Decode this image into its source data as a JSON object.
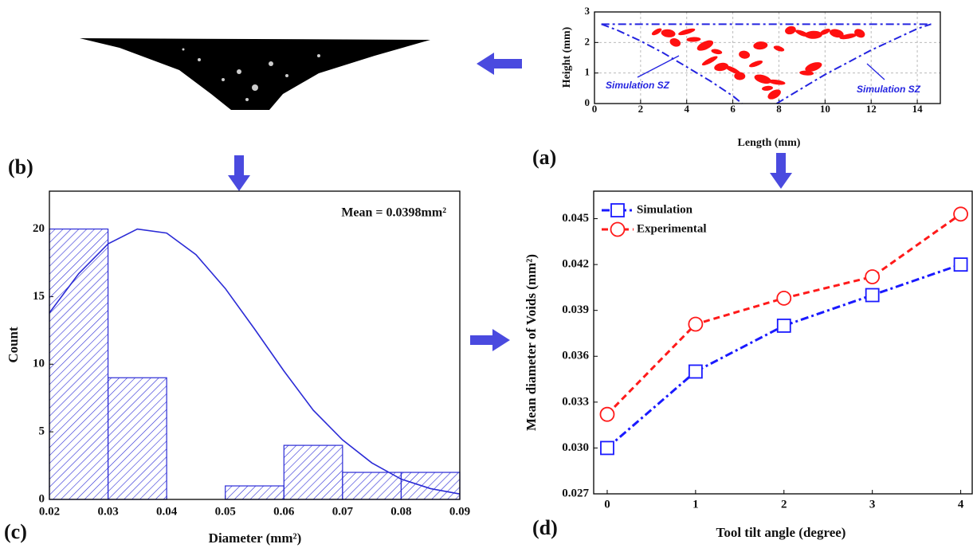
{
  "chart_data": [
    {
      "type": "line",
      "panel_label": "(a)",
      "x_label": "Length (mm)",
      "y_label": "Height (mm)",
      "xlim": [
        0,
        15
      ],
      "xticks": [
        0,
        2,
        4,
        6,
        8,
        10,
        12,
        14
      ],
      "ylim": [
        0,
        3
      ],
      "yticks": [
        0,
        1,
        2,
        3
      ],
      "grid": true,
      "annotations": [
        "Simulation SZ",
        "Simulation SZ"
      ],
      "series": [
        {
          "color": "#2424e0",
          "dash": "dashdot",
          "x": [
            0.3,
            1,
            2,
            3,
            4,
            5,
            6,
            6.4
          ],
          "values": [
            2.6,
            2.4,
            2.05,
            1.65,
            1.2,
            0.75,
            0.25,
            0
          ]
        },
        {
          "color": "#2424e0",
          "dash": "dashdot",
          "x": [
            7.9,
            9,
            10,
            11,
            12,
            13,
            14,
            14.6
          ],
          "values": [
            0,
            0.5,
            0.95,
            1.35,
            1.75,
            2.1,
            2.45,
            2.6
          ]
        },
        {
          "color": "#2424e0",
          "dash": "dashdot",
          "x": [
            0.3,
            14.6
          ],
          "values": [
            2.6,
            2.6
          ]
        },
        {
          "color": "#ff1010",
          "marker": "blob",
          "x": [
            2.7,
            3.2,
            4,
            3.5,
            4.3,
            4.8,
            5.3,
            5.5,
            6,
            6.3,
            7,
            7.3,
            7.5,
            7.8,
            7.9,
            8.5,
            9,
            9.5,
            10,
            10.5,
            11,
            11.5,
            9.2,
            9.5,
            8,
            7.2,
            5,
            6.5
          ],
          "values": [
            2.35,
            2.3,
            2.35,
            2.0,
            2.1,
            1.9,
            1.7,
            1.2,
            1.1,
            0.9,
            1.3,
            0.8,
            0.5,
            0.3,
            0.7,
            2.4,
            2.3,
            2.25,
            2.35,
            2.3,
            2.2,
            2.3,
            1.0,
            1.2,
            1.8,
            1.9,
            1.4,
            1.6
          ]
        }
      ]
    },
    {
      "type": "histogram",
      "panel_label": "(c)",
      "x_label": "Diameter (mm²)",
      "y_label": "Count",
      "annotation": "Mean = 0.0398mm²",
      "color": "#2b2bd6",
      "bins": [
        0.02,
        0.03,
        0.04,
        0.05,
        0.06,
        0.07,
        0.08,
        0.09
      ],
      "counts": [
        20,
        9,
        0,
        1,
        4,
        2,
        2
      ],
      "xlim": [
        0.02,
        0.09
      ],
      "xticks": [
        0.02,
        0.03,
        0.04,
        0.05,
        0.06,
        0.07,
        0.08,
        0.09
      ],
      "ylim": [
        0,
        22.8
      ],
      "yticks": [
        0,
        5,
        10,
        15,
        20
      ],
      "fit": {
        "x": [
          0.02,
          0.025,
          0.03,
          0.035,
          0.04,
          0.045,
          0.05,
          0.055,
          0.06,
          0.065,
          0.07,
          0.075,
          0.08,
          0.085,
          0.09
        ],
        "values": [
          13.8,
          16.7,
          18.9,
          20.0,
          19.7,
          18.1,
          15.6,
          12.6,
          9.5,
          6.6,
          4.4,
          2.7,
          1.5,
          0.8,
          0.4
        ]
      }
    },
    {
      "type": "line",
      "panel_label": "(d)",
      "x_label": "Tool tilt angle (degree)",
      "y_label": "Mean diameter of Voids (mm²)",
      "x": [
        0,
        1,
        2,
        3,
        4
      ],
      "xlim": [
        -0.153,
        4.13
      ],
      "xticks": [
        0,
        1,
        2,
        3,
        4
      ],
      "ylim": [
        0.027,
        0.0468
      ],
      "yticks": [
        0.027,
        {
          "value": 0.03,
          "label": "0.030"
        },
        0.033,
        0.036,
        0.039,
        0.042,
        0.045
      ],
      "legend": "upper left",
      "series": [
        {
          "name": "Simulation",
          "color": "#1a1aff",
          "marker": "square",
          "dash": "dashdot",
          "values": [
            0.03,
            0.035,
            0.038,
            0.04,
            0.042
          ]
        },
        {
          "name": "Experimental",
          "color": "#ff1a1a",
          "marker": "circle",
          "dash": "dashed",
          "values": [
            0.0322,
            0.0381,
            0.0398,
            0.0412,
            0.0453
          ]
        }
      ]
    }
  ],
  "image_panel": {
    "label": "(b)"
  }
}
